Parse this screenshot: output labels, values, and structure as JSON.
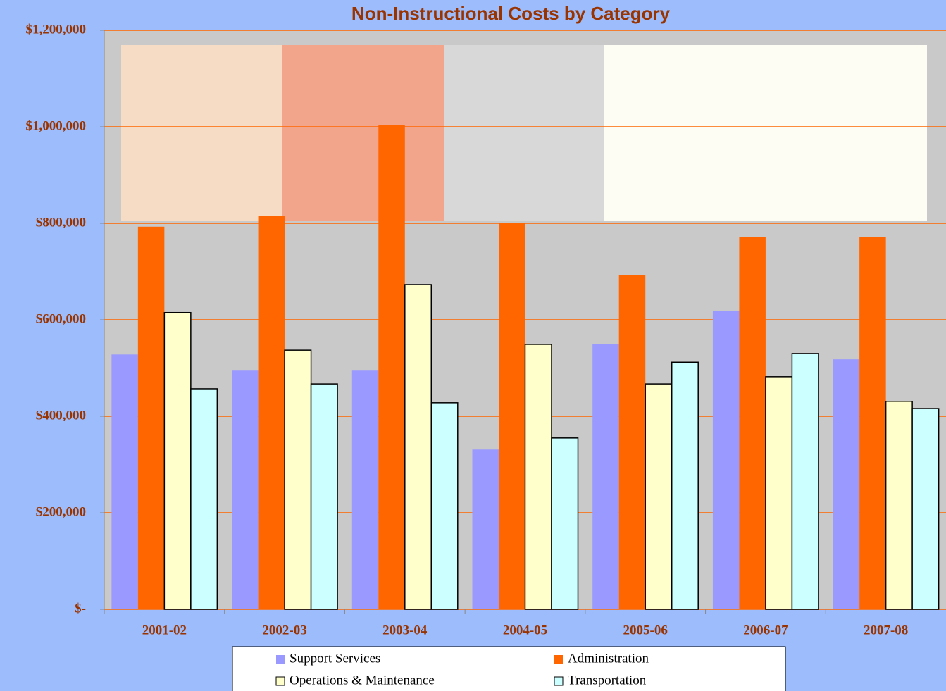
{
  "chart_data": {
    "type": "bar",
    "title": "Non-Instructional Costs by Category",
    "categories": [
      "2001-02",
      "2002-03",
      "2003-04",
      "2004-05",
      "2005-06",
      "2006-07",
      "2007-08"
    ],
    "series": [
      {
        "name": "Support Services",
        "color": "#9999ff",
        "outline": false,
        "values": [
          528000,
          496000,
          496000,
          331000,
          549000,
          619000,
          518000
        ]
      },
      {
        "name": "Administration",
        "color": "#ff6600",
        "outline": false,
        "values": [
          793000,
          816000,
          1003000,
          800000,
          693000,
          771000,
          771000
        ]
      },
      {
        "name": "Operations & Maintenance",
        "color": "#ffffcc",
        "outline": true,
        "values": [
          615000,
          537000,
          673000,
          549000,
          467000,
          482000,
          431000
        ]
      },
      {
        "name": "Transportation",
        "color": "#ccffff",
        "outline": true,
        "values": [
          457000,
          467000,
          428000,
          355000,
          512000,
          530000,
          416000
        ]
      }
    ],
    "ylim": [
      0,
      1200000
    ],
    "yticks": [
      {
        "value": 0,
        "label": "$-"
      },
      {
        "value": 200000,
        "label": "$200,000"
      },
      {
        "value": 400000,
        "label": "$400,000"
      },
      {
        "value": 600000,
        "label": "$600,000"
      },
      {
        "value": 800000,
        "label": "$800,000"
      },
      {
        "value": 1000000,
        "label": "$1,000,000"
      },
      {
        "value": 1200000,
        "label": "$1,200,000"
      }
    ],
    "grid": true,
    "grid_color": "#ff6600",
    "legend": "bottom"
  }
}
